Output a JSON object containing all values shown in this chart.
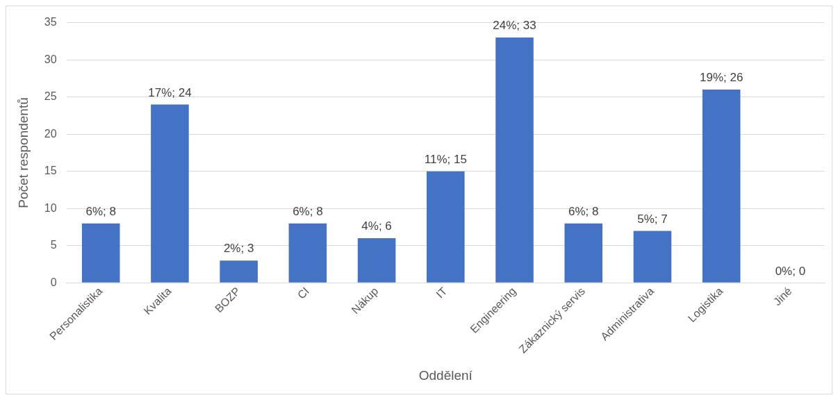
{
  "chart_data": {
    "type": "bar",
    "xlabel": "Oddělení",
    "ylabel": "Počet respondentů",
    "categories": [
      "Personalistika",
      "Kvalita",
      "BOZP",
      "CI",
      "Nákup",
      "IT",
      "Engineering",
      "Zákaznický servis",
      "Administrativa",
      "Logistika",
      "Jiné"
    ],
    "values": [
      8,
      24,
      3,
      8,
      6,
      15,
      33,
      8,
      7,
      26,
      0
    ],
    "value_labels": [
      "6%; 8",
      "17%; 24",
      "2%; 3",
      "6%; 8",
      "4%; 6",
      "11%; 15",
      "24%; 33",
      "6%; 8",
      "5%; 7",
      "19%; 26",
      "0%; 0"
    ],
    "color": "#4472c4",
    "ylim": [
      0,
      35
    ],
    "yticks": [
      0,
      5,
      10,
      15,
      20,
      25,
      30,
      35
    ],
    "grid": "y",
    "legend": false
  }
}
